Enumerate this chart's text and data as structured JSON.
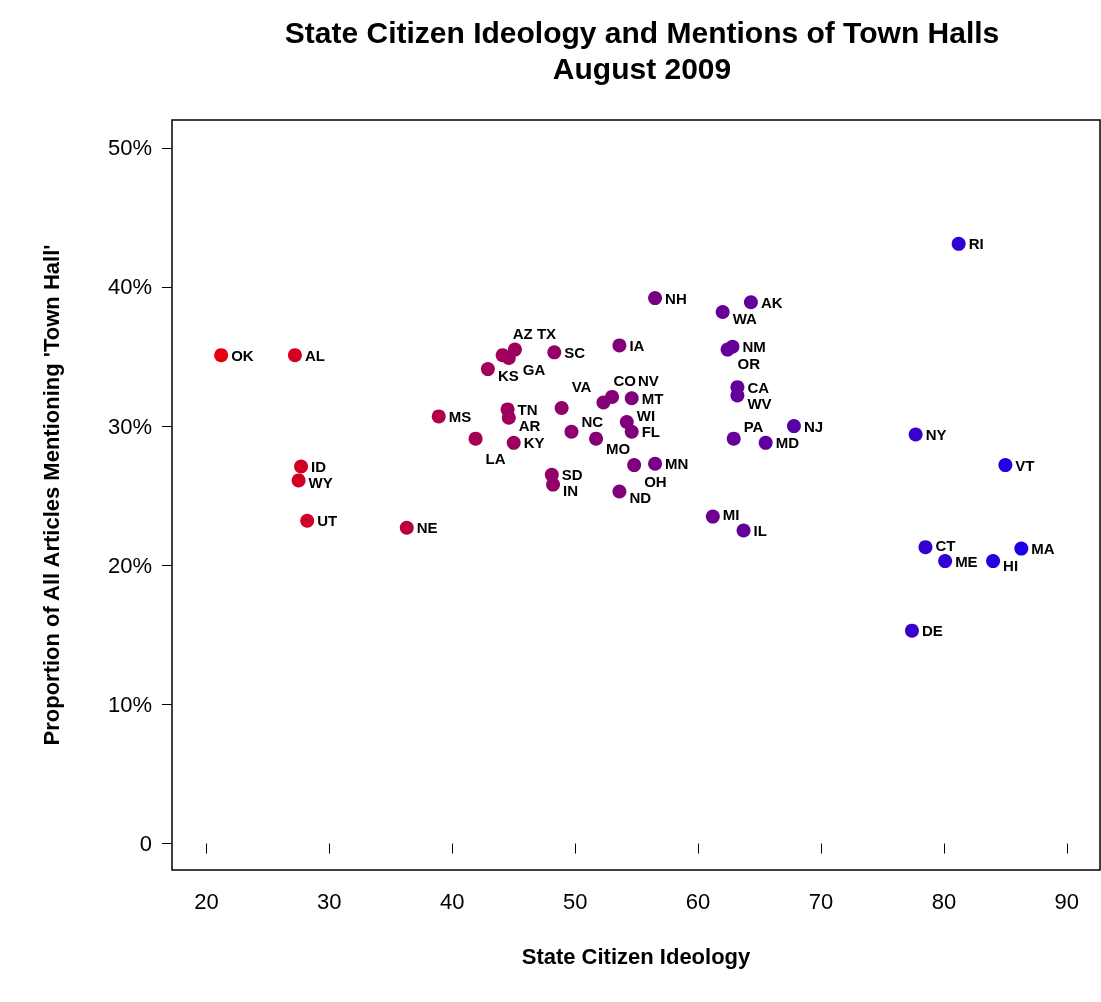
{
  "chart_data": {
    "type": "scatter",
    "title": "State Citizen Ideology and Mentions of Town Halls",
    "subtitle": "August 2009",
    "xlabel": "State Citizen Ideology",
    "ylabel": "Proportion of All Articles Mentioning 'Town Hall'",
    "x": [
      21.2,
      27.2,
      27.7,
      27.5,
      28.2,
      36.3,
      38.9,
      41.9,
      42.9,
      44.1,
      44.6,
      45.1,
      44.5,
      44.6,
      45.0,
      48.3,
      48.9,
      49.7,
      48.1,
      48.2,
      51.7,
      52.3,
      53.0,
      54.6,
      53.6,
      54.2,
      54.6,
      54.8,
      56.5,
      53.6,
      56.5,
      62.0,
      64.3,
      62.4,
      62.8,
      63.2,
      63.2,
      62.9,
      65.5,
      67.8,
      61.2,
      63.7,
      81.2,
      77.7,
      85.0,
      78.5,
      80.1,
      84.0,
      86.3,
      77.4
    ],
    "values": [
      35.1,
      35.1,
      27.1,
      26.1,
      23.2,
      22.7,
      30.7,
      29.1,
      34.1,
      35.1,
      34.9,
      35.5,
      31.2,
      30.6,
      28.8,
      35.3,
      31.3,
      29.6,
      26.5,
      25.8,
      29.1,
      31.7,
      32.1,
      32.0,
      35.8,
      30.3,
      29.6,
      27.2,
      27.3,
      25.3,
      39.2,
      38.2,
      38.9,
      35.5,
      35.7,
      32.8,
      32.2,
      29.1,
      28.8,
      30.0,
      23.5,
      22.5,
      43.1,
      29.4,
      27.2,
      21.3,
      20.3,
      20.3,
      21.2,
      15.3
    ],
    "value_labels": [
      "OK",
      "AL",
      "ID",
      "WY",
      "UT",
      "NE",
      "MS",
      "LA",
      "KS",
      "AZ",
      "GA",
      "TX",
      "TN",
      "AR",
      "KY",
      "SC",
      "VA",
      "NC",
      "SD",
      "IN",
      "MO",
      "CO",
      "NV",
      "MT",
      "IA",
      "WI",
      "FL",
      "OH",
      "MN",
      "ND",
      "NH",
      "WA",
      "AK",
      "OR",
      "NM",
      "CA",
      "WV",
      "PA",
      "MD",
      "NJ",
      "MI",
      "IL",
      "RI",
      "NY",
      "VT",
      "CT",
      "ME",
      "HI",
      "MA",
      "DE"
    ],
    "colors": [
      "#e6000f",
      "#d40023",
      "#d20025",
      "#d30024",
      "#d00026",
      "#b80041",
      "#b00049",
      "#a60053",
      "#a30057",
      "#a0005b",
      "#9e005c",
      "#9d005e",
      "#9e005c",
      "#9e005c",
      "#9d005e",
      "#930068",
      "#91006a",
      "#8e006d",
      "#930068",
      "#930068",
      "#880074",
      "#860076",
      "#840078",
      "#7f007d",
      "#82007a",
      "#81007c",
      "#7f007d",
      "#7f007e",
      "#7a0084",
      "#82007a",
      "#7a0084",
      "#690096",
      "#62009d",
      "#670097",
      "#660098",
      "#65009a",
      "#65009a",
      "#660098",
      "#5e00a1",
      "#5700a9",
      "#6b0093",
      "#63009b",
      "#2e00d5",
      "#3800ca",
      "#2200e2",
      "#3600cc",
      "#3100d2",
      "#2500de",
      "#1e00e6",
      "#3900c9"
    ],
    "marker": "circle",
    "xlim": [
      17.2,
      92.7
    ],
    "xticks": [
      20,
      30,
      40,
      50,
      60,
      70,
      80,
      90
    ],
    "ylim": [
      -1.9,
      52.0
    ],
    "yticks": [
      {
        "value": 0,
        "label": "0"
      },
      {
        "value": 10,
        "label": "10%"
      },
      {
        "value": 20,
        "label": "20%"
      },
      {
        "value": 30,
        "label": "30%"
      },
      {
        "value": 40,
        "label": "40%"
      },
      {
        "value": 50,
        "label": "50%"
      }
    ]
  }
}
